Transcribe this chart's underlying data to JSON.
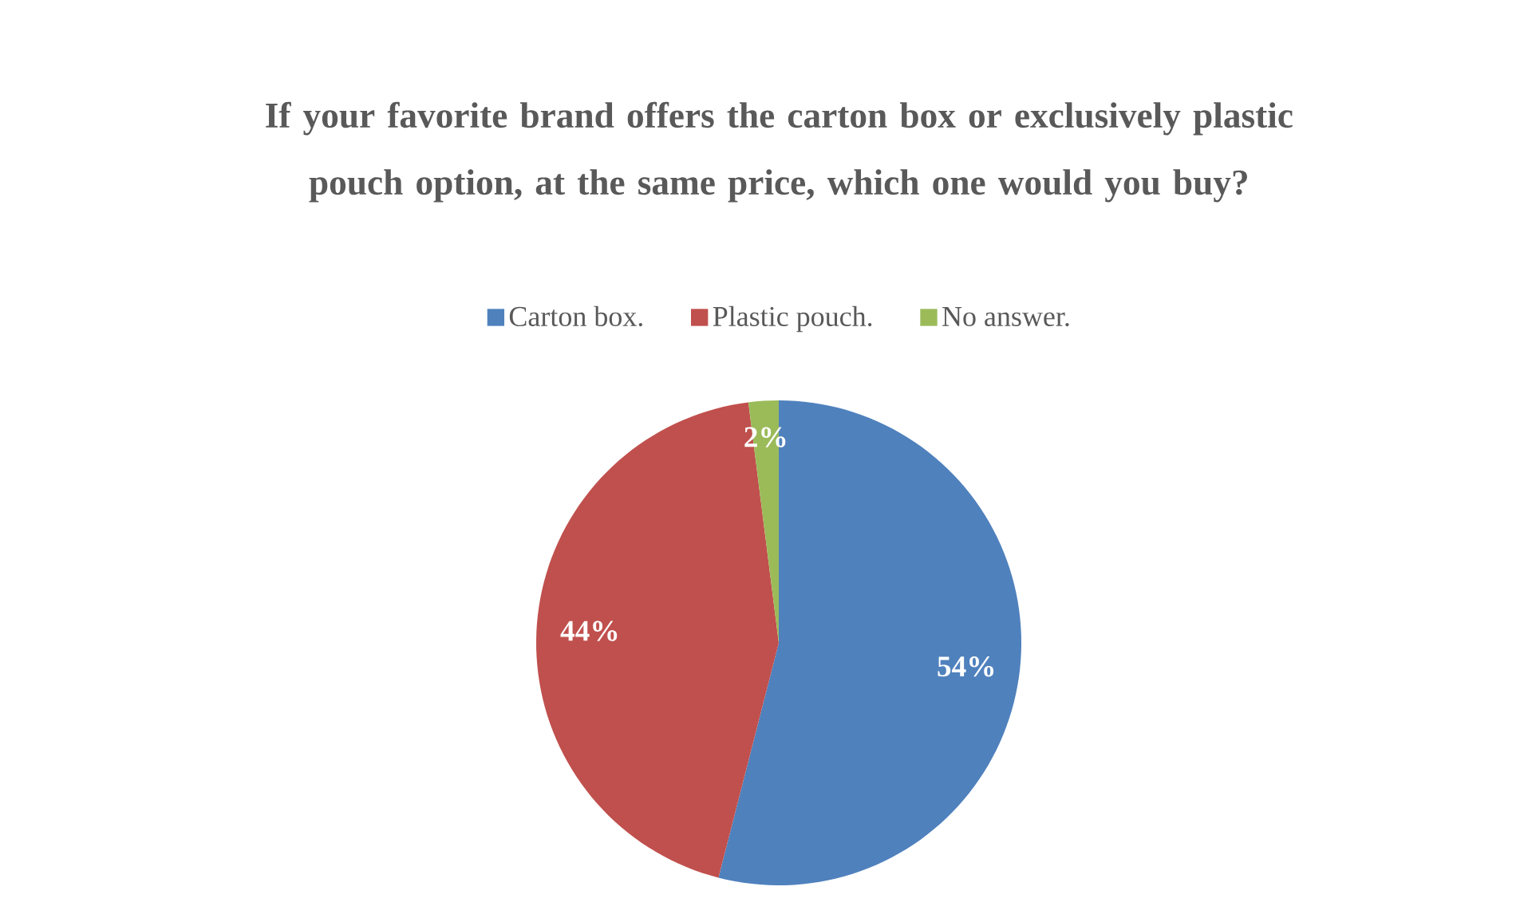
{
  "chart_data": {
    "type": "pie",
    "title": "If your favorite brand offers the carton box or exclusively plastic pouch option, at the same price, which one would you buy?",
    "categories": [
      "Carton box.",
      "Plastic pouch.",
      "No answer."
    ],
    "values": [
      54,
      44,
      2
    ],
    "colors": [
      "#4f81bd",
      "#c0504d",
      "#9bbb59"
    ],
    "value_labels": [
      "54%",
      "44%",
      "2%"
    ],
    "legend": "top"
  }
}
